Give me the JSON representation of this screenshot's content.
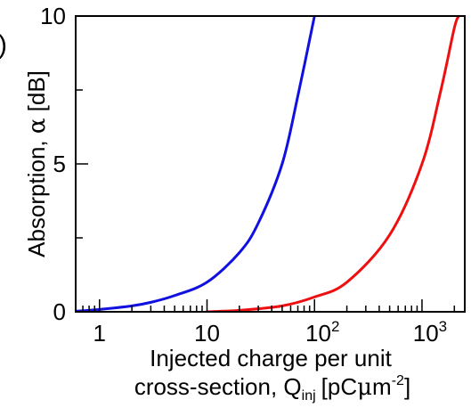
{
  "panel_label_fragment": ")",
  "chart_data": {
    "type": "line",
    "title": "",
    "xlabel_lines": [
      "Injected charge per unit",
      "cross-section, Q"
    ],
    "xlabel_subscript": "inj",
    "xlabel_unit_prefix": "[pC",
    "xlabel_unit_mu": "μ",
    "xlabel_unit_m": "m",
    "xlabel_unit_exp": "-2",
    "xlabel_unit_suffix": "]",
    "ylabel_prefix": "Absorption, ",
    "ylabel_symbol": "α",
    "ylabel_suffix": " [dB]",
    "xscale": "log",
    "xlim": [
      0.6,
      2500
    ],
    "ylim": [
      0,
      10
    ],
    "x_ticks": [
      {
        "value": 1,
        "label": "1"
      },
      {
        "value": 10,
        "label": "10"
      },
      {
        "value": 100,
        "label": "10",
        "exp": "2"
      },
      {
        "value": 1000,
        "label": "10",
        "exp": "3"
      }
    ],
    "y_ticks": [
      {
        "value": 0,
        "label": "0"
      },
      {
        "value": 5,
        "label": "5"
      },
      {
        "value": 10,
        "label": "10"
      }
    ],
    "grid": false,
    "legend": "none",
    "series": [
      {
        "color": "#1010e0",
        "x": [
          0.6,
          1,
          2,
          3,
          5,
          10,
          20,
          30,
          50,
          70,
          100
        ],
        "y": [
          0.02,
          0.08,
          0.2,
          0.32,
          0.55,
          1.0,
          2.0,
          3.0,
          5.0,
          7.3,
          10.0
        ]
      },
      {
        "color": "#ee1010",
        "x": [
          10,
          20,
          50,
          100,
          200,
          500,
          1000,
          1500,
          2000,
          2200
        ],
        "y": [
          0.0,
          0.05,
          0.2,
          0.5,
          1.0,
          2.6,
          5.0,
          7.5,
          9.6,
          10.0
        ]
      }
    ]
  }
}
